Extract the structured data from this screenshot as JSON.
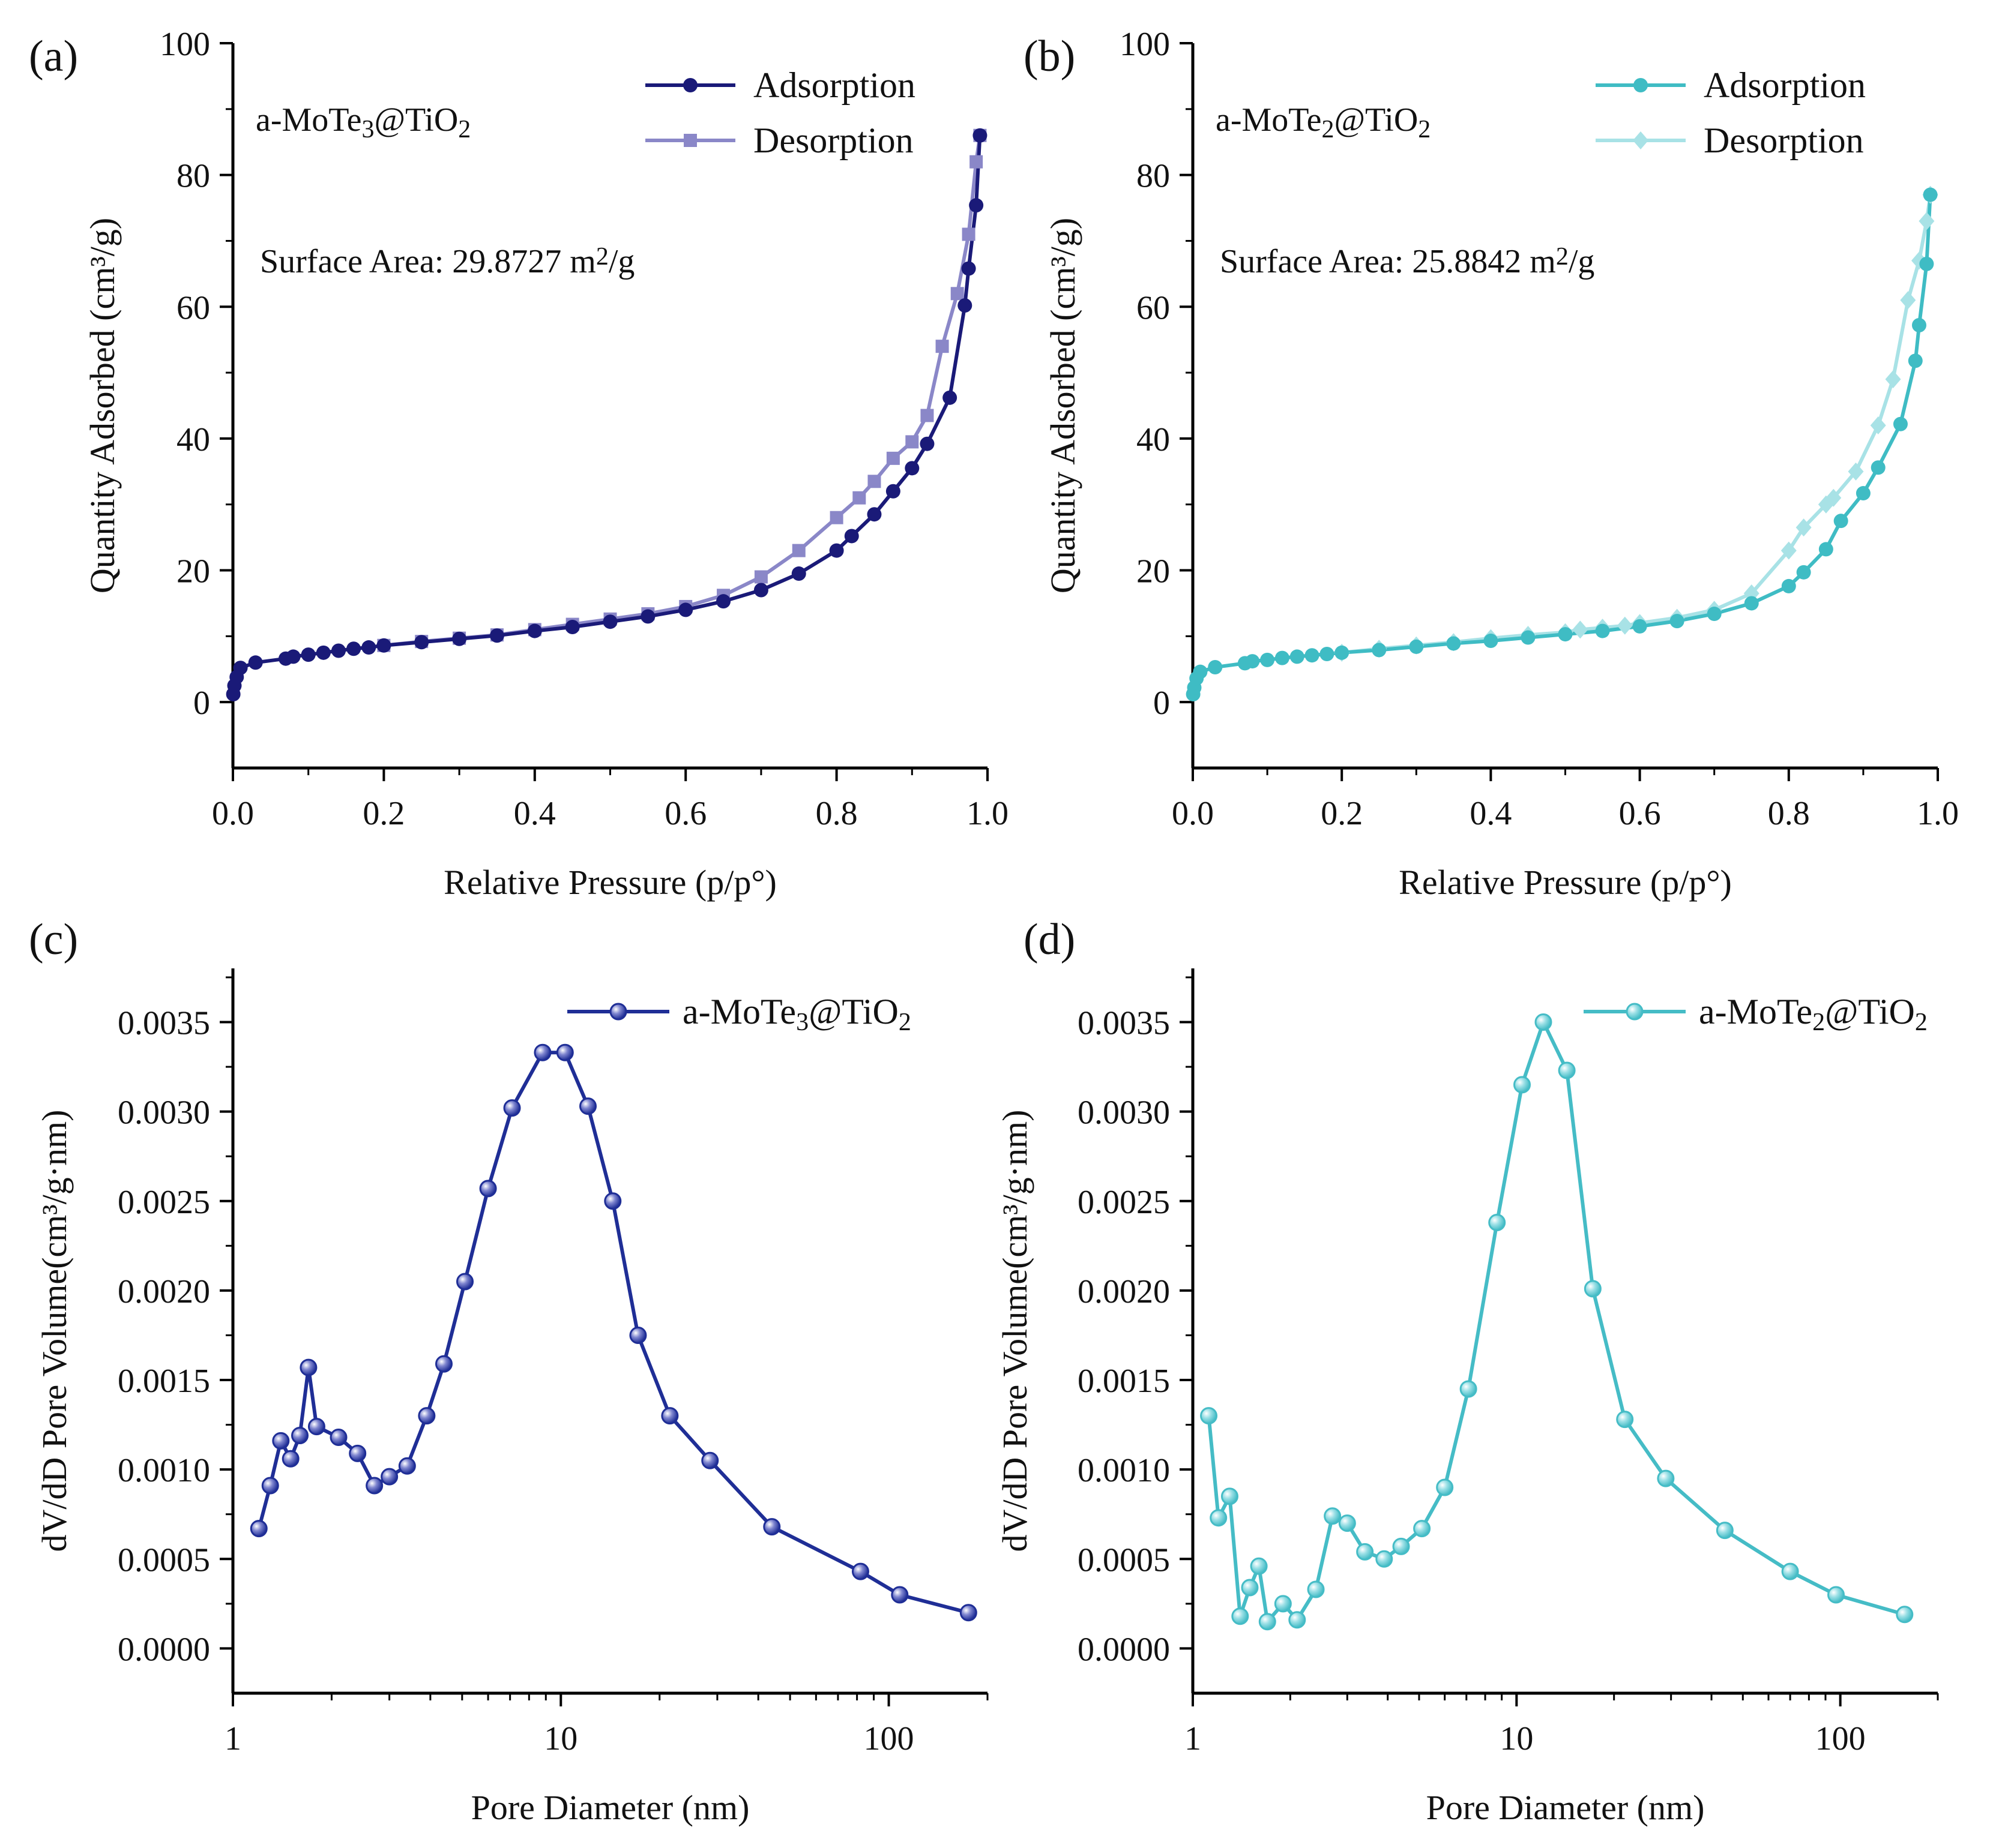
{
  "chart_data": [
    {
      "type": "line",
      "panel": "(a)",
      "xscale": "linear",
      "xlabel": "Relative Pressure (p/p°)",
      "ylabel": "Quantity Adsorbed (cm³/g)",
      "xlim": [
        0,
        1
      ],
      "ylim": [
        -10,
        100
      ],
      "xticks": [
        0,
        0.2,
        0.4,
        0.6,
        0.8,
        1.0
      ],
      "xtick_labels": [
        "0.0",
        "0.2",
        "0.4",
        "0.6",
        "0.8",
        "1.0"
      ],
      "yticks": [
        0,
        20,
        40,
        60,
        80,
        100
      ],
      "ytick_labels": [
        "0",
        "20",
        "40",
        "60",
        "80",
        "100"
      ],
      "sample_label": {
        "prefix": "a-MoTe",
        "sub1": "3",
        "mid": "@TiO",
        "sub2": "2"
      },
      "surface_area": {
        "prefix": "Surface Area: 29.8727 m",
        "sup": "2",
        "suffix": "/g"
      },
      "legend_position": "top-right",
      "series": [
        {
          "name": "Desorption",
          "color": "#8a87c8",
          "marker": "square",
          "x": [
            0.99,
            0.985,
            0.975,
            0.96,
            0.94,
            0.92,
            0.9,
            0.875,
            0.85,
            0.83,
            0.8,
            0.75,
            0.7,
            0.65,
            0.6,
            0.55,
            0.5,
            0.45,
            0.4,
            0.35,
            0.3,
            0.25,
            0.2
          ],
          "y": [
            86,
            82,
            71,
            62,
            54,
            43.5,
            39.5,
            37,
            33.5,
            31,
            28,
            23,
            19,
            16.2,
            14.5,
            13.4,
            12.6,
            11.8,
            11,
            10.2,
            9.7,
            9.2,
            8.6
          ]
        },
        {
          "name": "Adsorption",
          "color": "#1a1a78",
          "marker": "circle",
          "x": [
            0.0005,
            0.002,
            0.005,
            0.01,
            0.03,
            0.07,
            0.08,
            0.1,
            0.12,
            0.14,
            0.16,
            0.18,
            0.2,
            0.25,
            0.3,
            0.35,
            0.4,
            0.45,
            0.5,
            0.55,
            0.6,
            0.65,
            0.7,
            0.75,
            0.8,
            0.82,
            0.85,
            0.875,
            0.9,
            0.92,
            0.95,
            0.97,
            0.975,
            0.985,
            0.99
          ],
          "y": [
            1.2,
            2.5,
            3.8,
            5.2,
            6,
            6.6,
            6.9,
            7.2,
            7.5,
            7.8,
            8.1,
            8.3,
            8.6,
            9.1,
            9.6,
            10.1,
            10.8,
            11.4,
            12.2,
            13,
            14,
            15.3,
            17,
            19.5,
            23,
            25.2,
            28.5,
            32,
            35.5,
            39.2,
            46.2,
            60.2,
            65.8,
            75.4,
            86
          ]
        }
      ]
    },
    {
      "type": "line",
      "panel": "(b)",
      "xscale": "linear",
      "xlabel": "Relative Pressure (p/p°)",
      "ylabel": "Quantity Adsorbed (cm³/g)",
      "xlim": [
        0,
        1
      ],
      "ylim": [
        -10,
        100
      ],
      "xticks": [
        0,
        0.2,
        0.4,
        0.6,
        0.8,
        1.0
      ],
      "xtick_labels": [
        "0.0",
        "0.2",
        "0.4",
        "0.6",
        "0.8",
        "1.0"
      ],
      "yticks": [
        0,
        20,
        40,
        60,
        80,
        100
      ],
      "ytick_labels": [
        "0",
        "20",
        "40",
        "60",
        "80",
        "100"
      ],
      "sample_label": {
        "prefix": "a-MoTe",
        "sub1": "2",
        "mid": "@TiO",
        "sub2": "2"
      },
      "surface_area": {
        "prefix": "Surface Area: 25.8842 m",
        "sup": "2",
        "suffix": "/g"
      },
      "legend_position": "top-right",
      "series": [
        {
          "name": "Desorption",
          "color": "#a8e2e6",
          "marker": "diamond",
          "x": [
            0.99,
            0.985,
            0.975,
            0.96,
            0.94,
            0.92,
            0.89,
            0.86,
            0.85,
            0.82,
            0.8,
            0.75,
            0.7,
            0.65,
            0.6,
            0.58,
            0.55,
            0.52,
            0.5,
            0.45,
            0.4,
            0.35,
            0.3,
            0.25,
            0.2
          ],
          "y": [
            77,
            73,
            67,
            61,
            49,
            42,
            35,
            31,
            30,
            26.5,
            23,
            16.5,
            14,
            12.8,
            12,
            11.6,
            11.3,
            11,
            10.6,
            10.2,
            9.7,
            9.1,
            8.6,
            8.1,
            7.5
          ]
        },
        {
          "name": "Adsorption",
          "color": "#3fbcc4",
          "marker": "circle",
          "x": [
            0.0005,
            0.002,
            0.005,
            0.01,
            0.03,
            0.07,
            0.08,
            0.1,
            0.12,
            0.14,
            0.16,
            0.18,
            0.2,
            0.25,
            0.3,
            0.35,
            0.4,
            0.45,
            0.5,
            0.55,
            0.6,
            0.65,
            0.7,
            0.75,
            0.8,
            0.82,
            0.85,
            0.87,
            0.9,
            0.92,
            0.95,
            0.97,
            0.975,
            0.985,
            0.99
          ],
          "y": [
            1.2,
            2.2,
            3.6,
            4.6,
            5.3,
            5.9,
            6.2,
            6.4,
            6.7,
            6.9,
            7.1,
            7.3,
            7.5,
            7.9,
            8.4,
            8.9,
            9.3,
            9.8,
            10.3,
            10.8,
            11.5,
            12.3,
            13.4,
            15,
            17.6,
            19.7,
            23.2,
            27.5,
            31.7,
            35.6,
            42.2,
            51.8,
            57.2,
            66.5,
            77
          ]
        }
      ]
    },
    {
      "type": "line",
      "panel": "(c)",
      "xscale": "log",
      "xlabel": "Pore Diameter (nm)",
      "ylabel": "dV/dD Pore Volume(cm³/g·nm)",
      "xlim": [
        1,
        200
      ],
      "ylim": [
        -0.00025,
        0.0038
      ],
      "xticks": [
        1,
        10,
        100
      ],
      "xtick_labels": [
        "1",
        "10",
        "100"
      ],
      "yticks": [
        0,
        0.0005,
        0.001,
        0.0015,
        0.002,
        0.0025,
        0.003,
        0.0035
      ],
      "ytick_labels": [
        "0.0000",
        "0.0005",
        "0.0010",
        "0.0015",
        "0.0020",
        "0.0025",
        "0.0030",
        "0.0035"
      ],
      "legend_position": "top-right",
      "series": [
        {
          "name": "a-MoTe3@TiO2",
          "legend": {
            "prefix": "a-MoTe",
            "sub1": "3",
            "mid": "@TiO",
            "sub2": "2"
          },
          "color": "#1f2e96",
          "marker": "sphere",
          "x": [
            1.2,
            1.3,
            1.4,
            1.5,
            1.6,
            1.7,
            1.8,
            2.1,
            2.4,
            2.7,
            3.0,
            3.4,
            3.9,
            4.4,
            5.1,
            6.0,
            7.1,
            8.8,
            10.3,
            12.1,
            14.4,
            17.2,
            21.5,
            28.5,
            44,
            82,
            108,
            175
          ],
          "y": [
            0.00067,
            0.00091,
            0.00116,
            0.00106,
            0.00119,
            0.00157,
            0.00124,
            0.00118,
            0.00109,
            0.00091,
            0.00096,
            0.00102,
            0.0013,
            0.00159,
            0.00205,
            0.00257,
            0.00302,
            0.00333,
            0.00333,
            0.00303,
            0.0025,
            0.00175,
            0.0013,
            0.00105,
            0.00068,
            0.00043,
            0.0003,
            0.0002
          ]
        }
      ]
    },
    {
      "type": "line",
      "panel": "(d)",
      "xscale": "log",
      "xlabel": "Pore Diameter (nm)",
      "ylabel": "dV/dD Pore Volume(cm³/g·nm)",
      "xlim": [
        1,
        200
      ],
      "ylim": [
        -0.00025,
        0.0038
      ],
      "xticks": [
        1,
        10,
        100
      ],
      "xtick_labels": [
        "1",
        "10",
        "100"
      ],
      "yticks": [
        0,
        0.0005,
        0.001,
        0.0015,
        0.002,
        0.0025,
        0.003,
        0.0035
      ],
      "ytick_labels": [
        "0.0000",
        "0.0005",
        "0.0010",
        "0.0015",
        "0.0020",
        "0.0025",
        "0.0030",
        "0.0035"
      ],
      "legend_position": "top-right",
      "series": [
        {
          "name": "a-MoTe2@TiO2",
          "legend": {
            "prefix": "a-MoTe",
            "sub1": "2",
            "mid": "@TiO",
            "sub2": "2"
          },
          "color": "#45bcc6",
          "marker": "sphere",
          "x": [
            1.12,
            1.2,
            1.3,
            1.4,
            1.5,
            1.6,
            1.7,
            1.9,
            2.1,
            2.4,
            2.7,
            3.0,
            3.4,
            3.9,
            4.4,
            5.1,
            6.0,
            7.1,
            8.7,
            10.4,
            12.1,
            14.3,
            17.2,
            21.6,
            28.9,
            44,
            70,
            97,
            158
          ],
          "y": [
            0.0013,
            0.00073,
            0.00085,
            0.00018,
            0.00034,
            0.00046,
            0.00015,
            0.00025,
            0.00016,
            0.00033,
            0.00074,
            0.0007,
            0.00054,
            0.0005,
            0.00057,
            0.00067,
            0.0009,
            0.00145,
            0.00238,
            0.00315,
            0.0035,
            0.00323,
            0.00201,
            0.00128,
            0.00095,
            0.00066,
            0.00043,
            0.0003,
            0.00019
          ]
        }
      ]
    }
  ]
}
